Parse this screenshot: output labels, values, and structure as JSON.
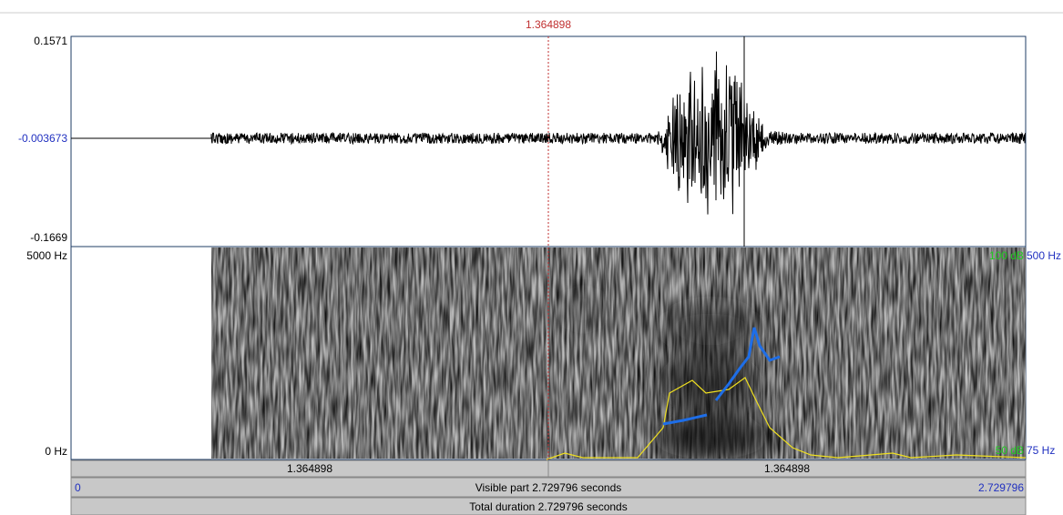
{
  "cursor": {
    "time": "1.364898"
  },
  "waveform": {
    "top": "0.1571",
    "middle": "-0.003673",
    "bottom": "-0.1669"
  },
  "spectrogram": {
    "top_left": "5000 Hz",
    "bottom_left": "0 Hz",
    "intensity_top": "100 dB",
    "pitch_top": "500 Hz",
    "intensity_bottom": "50 dB",
    "pitch_bottom": "75 Hz"
  },
  "bars": {
    "left_segment": "1.364898",
    "right_segment": "1.364898",
    "visible_start": "0",
    "visible_label": "Visible part 2.729796 seconds",
    "visible_end": "2.729796",
    "total_label": "Total duration 2.729796 seconds"
  }
}
